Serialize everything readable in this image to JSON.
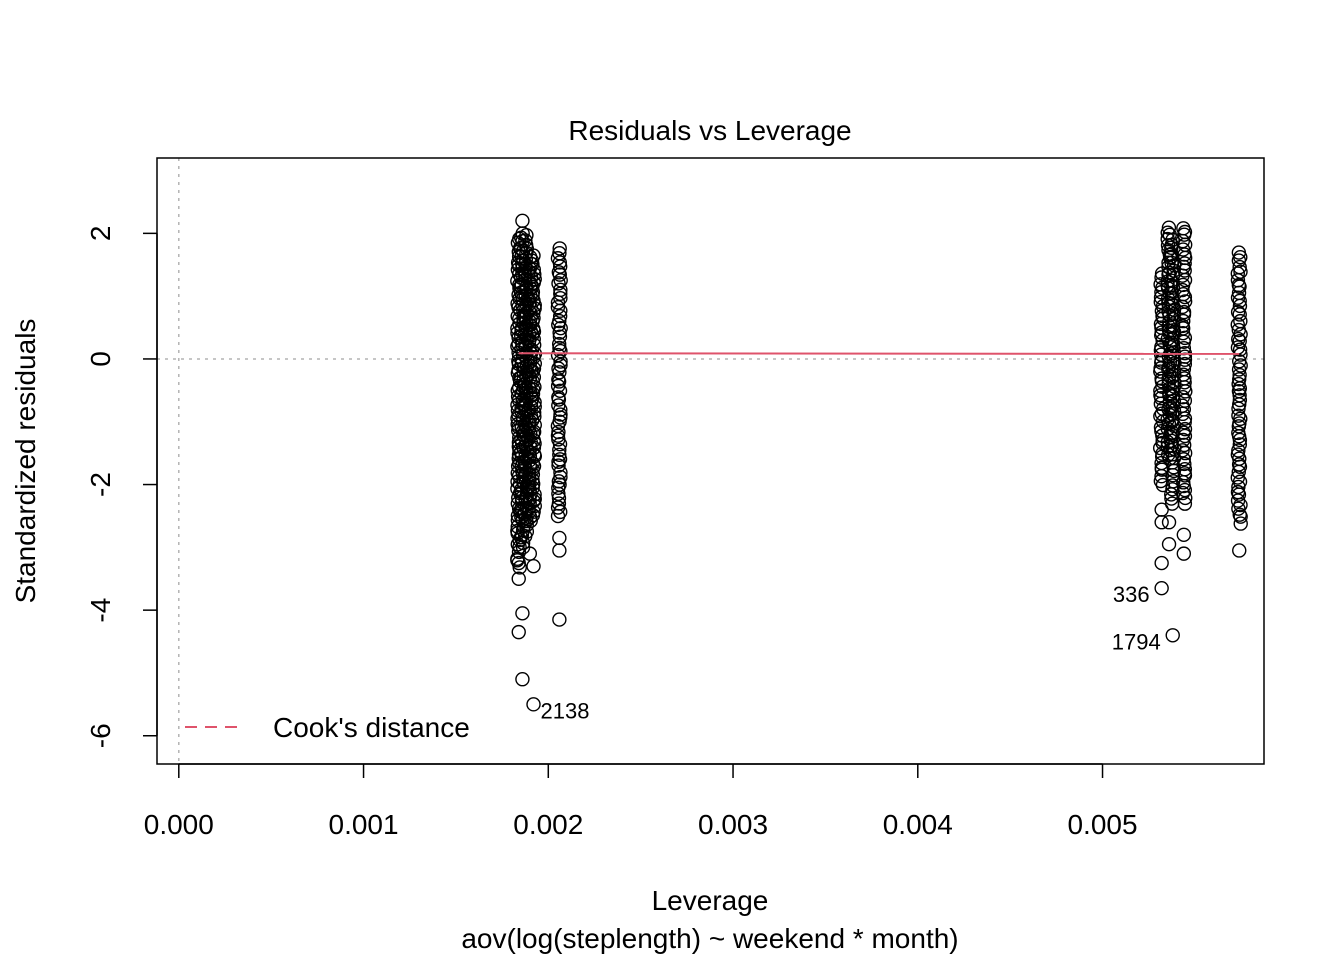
{
  "chart_data": {
    "type": "scatter",
    "title": "Residuals vs Leverage",
    "xlabel": "Leverage",
    "sublabel": "aov(log(steplength) ~ weekend * month)",
    "ylabel": "Standardized residuals",
    "xlim": [
      -0.000118,
      0.005874
    ],
    "ylim": [
      -6.45,
      3.2
    ],
    "x_ticks": [
      0.0,
      0.001,
      0.002,
      0.003,
      0.004,
      0.005
    ],
    "x_tick_labels": [
      "0.000",
      "0.001",
      "0.002",
      "0.003",
      "0.004",
      "0.005"
    ],
    "y_ticks": [
      -6,
      -4,
      -2,
      0,
      2
    ],
    "y_tick_labels": [
      "-6",
      "-4",
      "-2",
      "0",
      "2"
    ],
    "reference_lines": {
      "h": 0,
      "v": 0,
      "style": "dotted",
      "color": "#b3b3b3"
    },
    "point_columns": [
      {
        "x": 0.00184,
        "y_min": -3.3,
        "y_max": 1.9,
        "outliers": [
          -3.5,
          -4.35,
          -3.25
        ]
      },
      {
        "x": 0.00186,
        "y_min": -3.0,
        "y_max": 2.0,
        "outliers": [
          2.2,
          -4.05,
          -5.1
        ]
      },
      {
        "x": 0.00188,
        "y_min": -2.8,
        "y_max": 1.95,
        "outliers": []
      },
      {
        "x": 0.0019,
        "y_min": -2.6,
        "y_max": 1.6,
        "outliers": [
          -3.1
        ]
      },
      {
        "x": 0.00192,
        "y_min": -2.5,
        "y_max": 1.65,
        "outliers": [
          -3.3,
          -5.5
        ]
      },
      {
        "x": 0.00206,
        "y_min": -2.5,
        "y_max": 1.75,
        "outliers": [
          -2.85,
          -3.05,
          -4.15
        ]
      },
      {
        "x": 0.00532,
        "y_min": -2.0,
        "y_max": 1.35,
        "outliers": [
          -2.4,
          -2.6,
          -3.25,
          -3.65
        ]
      },
      {
        "x": 0.00536,
        "y_min": -1.6,
        "y_max": 2.1,
        "outliers": [
          -2.6,
          -2.95
        ]
      },
      {
        "x": 0.00538,
        "y_min": -2.3,
        "y_max": 1.9,
        "outliers": [
          -4.4
        ]
      },
      {
        "x": 0.00544,
        "y_min": -2.3,
        "y_max": 2.1,
        "outliers": [
          -2.8,
          -3.1
        ]
      },
      {
        "x": 0.00574,
        "y_min": -2.6,
        "y_max": 1.7,
        "outliers": [
          -3.05
        ]
      }
    ],
    "loess_line": {
      "color": "#DF536B",
      "points": [
        [
          0.00184,
          0.09
        ],
        [
          0.00574,
          0.08
        ]
      ]
    },
    "point_labels": [
      {
        "text": "2138",
        "x": 0.00192,
        "y": -5.5,
        "side": "right"
      },
      {
        "text": "336",
        "x": 0.00532,
        "y": -3.65,
        "side": "left"
      },
      {
        "text": "1794",
        "x": 0.00538,
        "y": -4.4,
        "side": "left"
      }
    ],
    "legend": {
      "label": "Cook's distance",
      "position": "bottom-left",
      "color": "#DF536B",
      "line_style": "dashed"
    },
    "grid": false
  }
}
